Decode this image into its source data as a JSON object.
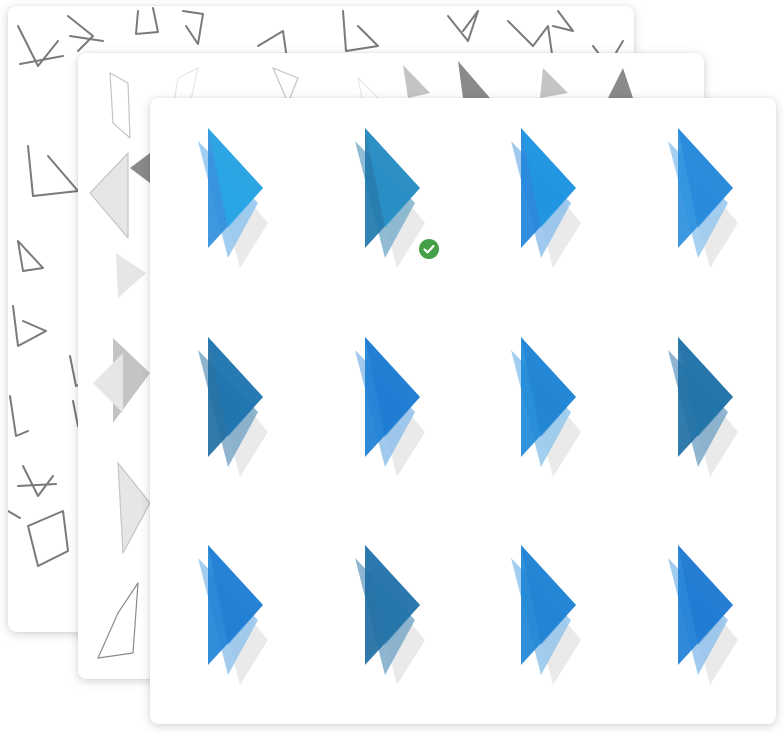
{
  "colors": {
    "card_background": "#ffffff",
    "sketch_stroke": "#7a7a7a",
    "middle_gray_light": "#e6e6e6",
    "middle_gray_mid": "#c4c4c4",
    "middle_gray_dark": "#8a8a8a",
    "shadow_gray": "#d9d9d9",
    "check_green": "#43a047"
  },
  "front_grid": {
    "rows": 3,
    "columns": 4,
    "selected_index": 1,
    "tiles": [
      {
        "name": "variant-1",
        "palette": [
          "#90c4ee",
          "#2f8fdc",
          "#1fb0ea"
        ]
      },
      {
        "name": "variant-2",
        "palette": [
          "#7fb0cc",
          "#1f78ae",
          "#2a9bd3"
        ]
      },
      {
        "name": "variant-3",
        "palette": [
          "#8fc1ea",
          "#2184dc",
          "#1a9fe5"
        ]
      },
      {
        "name": "variant-4",
        "palette": [
          "#95c8ee",
          "#2a8fde",
          "#1f84d8"
        ]
      },
      {
        "name": "variant-5",
        "palette": [
          "#7aa7c6",
          "#1f6fa3",
          "#1d79b6"
        ]
      },
      {
        "name": "variant-6",
        "palette": [
          "#8fbfea",
          "#1c7fd6",
          "#1a76cf"
        ]
      },
      {
        "name": "variant-7",
        "palette": [
          "#92c5ec",
          "#1f8ad8",
          "#1c80d2"
        ]
      },
      {
        "name": "variant-8",
        "palette": [
          "#7ba8c8",
          "#1f70a6",
          "#1e72a9"
        ]
      },
      {
        "name": "variant-9",
        "palette": [
          "#93c3ec",
          "#1f84d7",
          "#1c78d1"
        ]
      },
      {
        "name": "variant-10",
        "palette": [
          "#7aa9c9",
          "#1f6ea4",
          "#2479b0"
        ]
      },
      {
        "name": "variant-11",
        "palette": [
          "#92c4ec",
          "#1d86d6",
          "#1c7fd2"
        ]
      },
      {
        "name": "variant-12",
        "palette": [
          "#90c2eb",
          "#1f80d6",
          "#1b74cf"
        ]
      }
    ]
  },
  "icons": {
    "selected_marker": "checkmark-circle-icon",
    "tile_icon": "play-triangle-icon"
  }
}
